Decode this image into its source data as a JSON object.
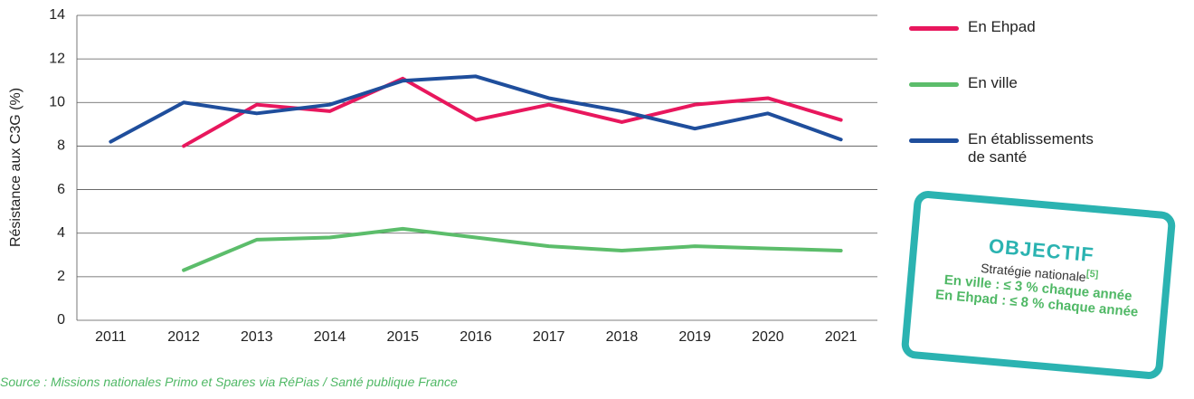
{
  "chart_data": {
    "type": "line",
    "y_label": "Résistance aux C3G (%)",
    "categories": [
      "2011",
      "2012",
      "2013",
      "2014",
      "2015",
      "2016",
      "2017",
      "2018",
      "2019",
      "2020",
      "2021"
    ],
    "series": [
      {
        "name": "En Ehpad",
        "color": "#e8175d",
        "values": [
          null,
          8.0,
          9.9,
          9.6,
          11.1,
          9.2,
          9.9,
          9.1,
          9.9,
          10.2,
          9.2
        ]
      },
      {
        "name": "En ville",
        "color": "#5cbd6b",
        "values": [
          null,
          2.3,
          3.7,
          3.8,
          4.2,
          3.8,
          3.4,
          3.2,
          3.4,
          3.3,
          3.2
        ]
      },
      {
        "name": "En établissements de santé",
        "color": "#1f4e9c",
        "values": [
          8.2,
          10.0,
          9.5,
          9.9,
          11.0,
          11.2,
          10.2,
          9.6,
          8.8,
          9.5,
          8.3
        ]
      }
    ],
    "ylim": [
      0,
      14
    ],
    "yticks": [
      0,
      2,
      4,
      6,
      8,
      10,
      12,
      14
    ],
    "grid": true,
    "legend": "right"
  },
  "objective": {
    "title": "OBJECTIF",
    "subtitle": "Stratégie nationale",
    "reference": "[5]",
    "lines": [
      "En ville : ≤ 3 % chaque année",
      "En Ehpad : ≤ 8 % chaque année"
    ]
  },
  "source": "Source : Missions nationales Primo et Spares via RéPias / Santé publique France"
}
